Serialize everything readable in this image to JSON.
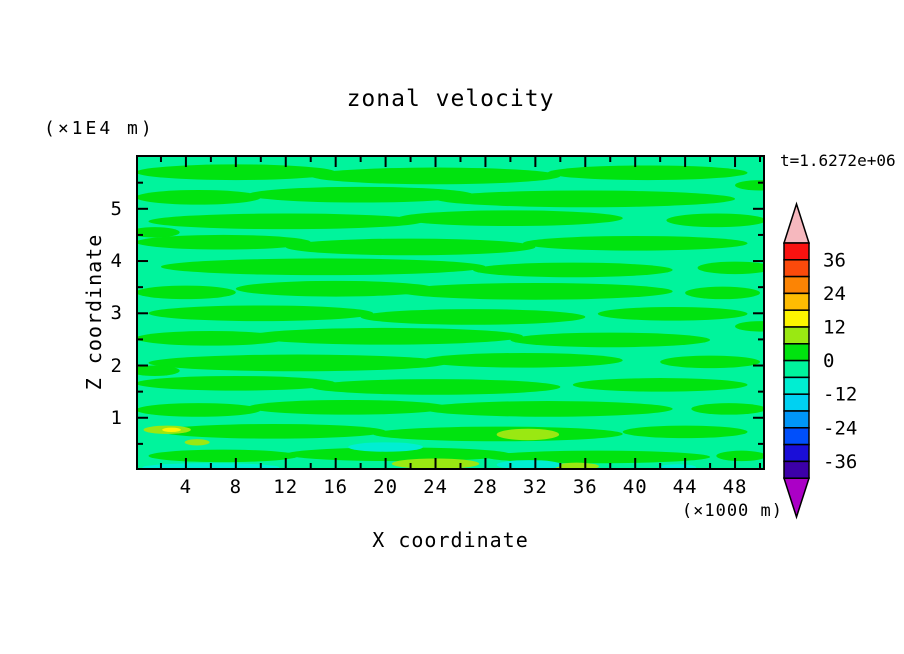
{
  "title": "zonal velocity",
  "time_stamp": "t=1.6272e+06",
  "axis_unit_top_left": "(×1E4 m)",
  "x_axis": {
    "label": "X coordinate",
    "unit": "(×1000 m)",
    "range": [
      0,
      50.4
    ],
    "major_tick_values": [
      4,
      8,
      12,
      16,
      20,
      24,
      28,
      32,
      36,
      40,
      44,
      48
    ],
    "major_tick_labels": [
      "4",
      "8",
      "12",
      "16",
      "20",
      "24",
      "28",
      "32",
      "36",
      "40",
      "44",
      "48"
    ],
    "minor_tick_values": [
      2,
      6,
      10,
      14,
      18,
      22,
      26,
      30,
      34,
      38,
      42,
      46,
      50
    ]
  },
  "y_axis": {
    "label": "Z coordinate",
    "range": [
      0,
      6.03
    ],
    "major_tick_values": [
      1,
      2,
      3,
      4,
      5
    ],
    "major_tick_labels": [
      "1",
      "2",
      "3",
      "4",
      "5"
    ],
    "minor_tick_values": [
      0.5,
      1.5,
      2.5,
      3.5,
      4.5,
      5.5
    ]
  },
  "colorbar": {
    "labels": [
      "36",
      "24",
      "12",
      "0",
      "-12",
      "-24",
      "-36"
    ],
    "over_arrow_color": "#F6B8BE",
    "under_arrow_color": "#AB00C6",
    "segments_top_to_bottom": [
      {
        "range": "36 to 42",
        "color": "#F91210"
      },
      {
        "range": "30 to 36",
        "color": "#FB4A0B"
      },
      {
        "range": "24 to 30",
        "color": "#FC8404"
      },
      {
        "range": "18 to 24",
        "color": "#FEBC02"
      },
      {
        "range": "12 to 18",
        "color": "#FDF500"
      },
      {
        "range": "6 to 12",
        "color": "#9AE812"
      },
      {
        "range": "0 to 6",
        "color": "#00E30F"
      },
      {
        "range": "-6 to 0",
        "color": "#00F49C"
      },
      {
        "range": "-12 to -6",
        "color": "#00EED2"
      },
      {
        "range": "-18 to -12",
        "color": "#00D1F2"
      },
      {
        "range": "-24 to -18",
        "color": "#0096F8"
      },
      {
        "range": "-30 to -24",
        "color": "#004FFB"
      },
      {
        "range": "-36 to -30",
        "color": "#1A0ED8"
      },
      {
        "range": "-42 to -36",
        "color": "#3C00A8"
      }
    ]
  },
  "chart_data": {
    "type": "heatmap",
    "subtype": "filled_contour",
    "title": "zonal velocity",
    "xlabel": "X coordinate (×1000 m)",
    "ylabel": "Z coordinate (×1E4 m)",
    "time_annotation": "t=1.6272e+06",
    "contour_interval": 6,
    "labeled_levels": [
      36,
      24,
      12,
      0,
      -12,
      -24,
      -36
    ],
    "x_range": [
      0,
      50.4
    ],
    "z_range": [
      0,
      6.03
    ],
    "field": {
      "background": {
        "level": "-6 to 0",
        "color": "#00F49C"
      },
      "note": "horizontally elongated alternating streaks of weakly positive and weakly negative velocity; blobs given as [x_center, z_center, x_halfwidth, z_halfheight] in axis units",
      "features": [
        {
          "level": "0 to 6",
          "color": "#00E30F",
          "blobs": [
            [
              8,
              5.7,
              8,
              0.15
            ],
            [
              24,
              5.63,
              10,
              0.16
            ],
            [
              41,
              5.69,
              8,
              0.14
            ],
            [
              5,
              5.22,
              5,
              0.14
            ],
            [
              18,
              5.27,
              9,
              0.15
            ],
            [
              36,
              5.19,
              12,
              0.16
            ],
            [
              50,
              5.45,
              2,
              0.1
            ],
            [
              12,
              4.76,
              11,
              0.15
            ],
            [
              30,
              4.82,
              9,
              0.15
            ],
            [
              46.5,
              4.78,
              4,
              0.13
            ],
            [
              1.5,
              4.55,
              2,
              0.1
            ],
            [
              7,
              4.36,
              7,
              0.14
            ],
            [
              22,
              4.27,
              10,
              0.16
            ],
            [
              40,
              4.34,
              9,
              0.14
            ],
            [
              15,
              3.89,
              13,
              0.16
            ],
            [
              35,
              3.83,
              8,
              0.14
            ],
            [
              48,
              3.87,
              3,
              0.12
            ],
            [
              4,
              3.4,
              4,
              0.13
            ],
            [
              16,
              3.47,
              8,
              0.15
            ],
            [
              32,
              3.42,
              11,
              0.16
            ],
            [
              47,
              3.39,
              3,
              0.12
            ],
            [
              10,
              3.0,
              9,
              0.15
            ],
            [
              27,
              2.93,
              9,
              0.15
            ],
            [
              43,
              2.99,
              6,
              0.13
            ],
            [
              50,
              2.75,
              2,
              0.1
            ],
            [
              6,
              2.52,
              6,
              0.14
            ],
            [
              20,
              2.56,
              11,
              0.16
            ],
            [
              38,
              2.49,
              8,
              0.14
            ],
            [
              13,
              2.05,
              12,
              0.16
            ],
            [
              31,
              2.1,
              8,
              0.14
            ],
            [
              46,
              2.07,
              4,
              0.12
            ],
            [
              1.5,
              1.9,
              2,
              0.1
            ],
            [
              8,
              1.66,
              8,
              0.14
            ],
            [
              24,
              1.59,
              10,
              0.15
            ],
            [
              42,
              1.63,
              7,
              0.13
            ],
            [
              5,
              1.15,
              5,
              0.13
            ],
            [
              17,
              1.2,
              8,
              0.14
            ],
            [
              33,
              1.17,
              10,
              0.15
            ],
            [
              47.5,
              1.17,
              3,
              0.11
            ],
            [
              11,
              0.74,
              9,
              0.14
            ],
            [
              29,
              0.69,
              10,
              0.14
            ],
            [
              44,
              0.73,
              5,
              0.12
            ],
            [
              7,
              0.27,
              6,
              0.12
            ],
            [
              21,
              0.3,
              9,
              0.13
            ],
            [
              37,
              0.25,
              9,
              0.12
            ],
            [
              48.5,
              0.27,
              2,
              0.1
            ]
          ]
        },
        {
          "level": "6 to 12",
          "color": "#9AE812",
          "blobs": [
            [
              2.5,
              0.77,
              1.9,
              0.08
            ],
            [
              4.9,
              0.53,
              1.0,
              0.06
            ],
            [
              31.4,
              0.68,
              2.5,
              0.11
            ],
            [
              24.0,
              0.12,
              3.5,
              0.1
            ],
            [
              35.3,
              0.07,
              1.8,
              0.07
            ]
          ]
        },
        {
          "level": "12 to 18",
          "color": "#FDF500",
          "blobs": [
            [
              2.85,
              0.77,
              0.75,
              0.042
            ]
          ]
        },
        {
          "level": "-12 to -6",
          "color": "#00EED2",
          "blobs": [
            [
              20,
              0.44,
              3.0,
              0.09
            ],
            [
              31.5,
              0.1,
              2.6,
              0.09
            ],
            [
              6,
              0.05,
              5.5,
              0.08
            ],
            [
              43.4,
              0.05,
              1.5,
              0.06
            ]
          ]
        }
      ]
    }
  }
}
